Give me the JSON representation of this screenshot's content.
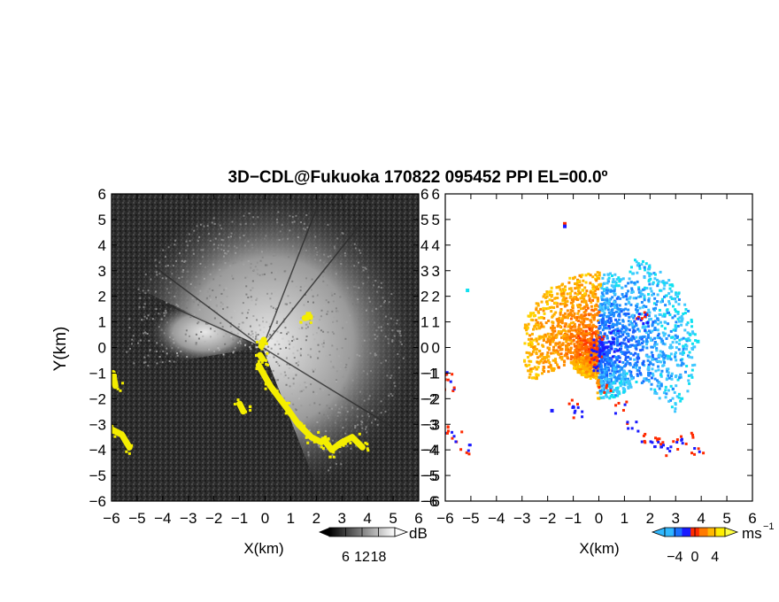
{
  "title": "3D−CDL@Fukuoka 170822 095452 PPI EL=00.0º",
  "colors": {
    "background": "#ffffff",
    "reflectivity_field": "#2f2f2f",
    "reflectivity_cone": "#bdbdbd",
    "clutter": "#f4ee00",
    "velocity_toward": "#1f8fff",
    "velocity_away": "#ff8c00",
    "velocity_neg_extreme": "#1a1aff",
    "velocity_pos_extreme": "#ff2a00",
    "velocity_cyan": "#10e0f0",
    "velocity_yellow": "#ffd200"
  },
  "chart_data": [
    {
      "type": "heatmap",
      "field": "reflectivity",
      "xlabel": "X(km)",
      "ylabel": "Y(km)",
      "xlim": [
        -6,
        6
      ],
      "ylim": [
        -6,
        6
      ],
      "xticks": [
        "−6",
        "−5",
        "−4",
        "−3",
        "−2",
        "−1",
        "0",
        "1",
        "2",
        "3",
        "4",
        "5",
        "6"
      ],
      "yticks": [
        "6",
        "5",
        "4",
        "3",
        "2",
        "1",
        "0",
        "−1",
        "−2",
        "−3",
        "−4",
        "−5",
        "−6"
      ],
      "colorbar": {
        "unit": "dB",
        "ticks": [
          "6",
          "12",
          "18"
        ],
        "range": [
          0,
          24
        ]
      },
      "clutter_tracks_km": [
        [
          [
            -0.25,
            -0.7
          ],
          [
            0.2,
            -1.5
          ],
          [
            0.8,
            -2.3
          ],
          [
            1.3,
            -3.0
          ],
          [
            1.8,
            -3.5
          ],
          [
            2.2,
            -3.7
          ]
        ],
        [
          [
            2.3,
            -3.6
          ],
          [
            2.6,
            -4.0
          ],
          [
            3.0,
            -3.7
          ],
          [
            3.4,
            -3.5
          ],
          [
            3.8,
            -3.9
          ]
        ],
        [
          [
            -6.0,
            -3.2
          ],
          [
            -5.6,
            -3.4
          ],
          [
            -5.3,
            -3.9
          ]
        ],
        [
          [
            -5.95,
            -1.0
          ],
          [
            -5.85,
            -1.5
          ]
        ],
        [
          [
            -1.0,
            -2.2
          ],
          [
            -0.85,
            -2.5
          ]
        ],
        [
          [
            -0.15,
            0.05
          ],
          [
            -0.05,
            0.3
          ]
        ],
        [
          [
            1.55,
            1.15
          ],
          [
            1.75,
            1.2
          ]
        ],
        [
          [
            -0.2,
            -0.3
          ],
          [
            -0.1,
            -0.45
          ]
        ]
      ]
    },
    {
      "type": "heatmap",
      "field": "radial_velocity",
      "xlabel": "X(km)",
      "xlim": [
        -6,
        6
      ],
      "ylim": [
        -6,
        6
      ],
      "xticks": [
        "−6",
        "−5",
        "−4",
        "−3",
        "−2",
        "−1",
        "0",
        "1",
        "2",
        "3",
        "4",
        "5",
        "6"
      ],
      "yticks": [
        "6",
        "5",
        "4",
        "3",
        "2",
        "1",
        "0",
        "−1",
        "−2",
        "−3",
        "−4",
        "−5",
        "−6"
      ],
      "colorbar": {
        "unit": "ms",
        "unit_exponent": "−1",
        "ticks": [
          "−4",
          "0",
          "4"
        ],
        "range": [
          -6,
          6
        ]
      }
    }
  ]
}
